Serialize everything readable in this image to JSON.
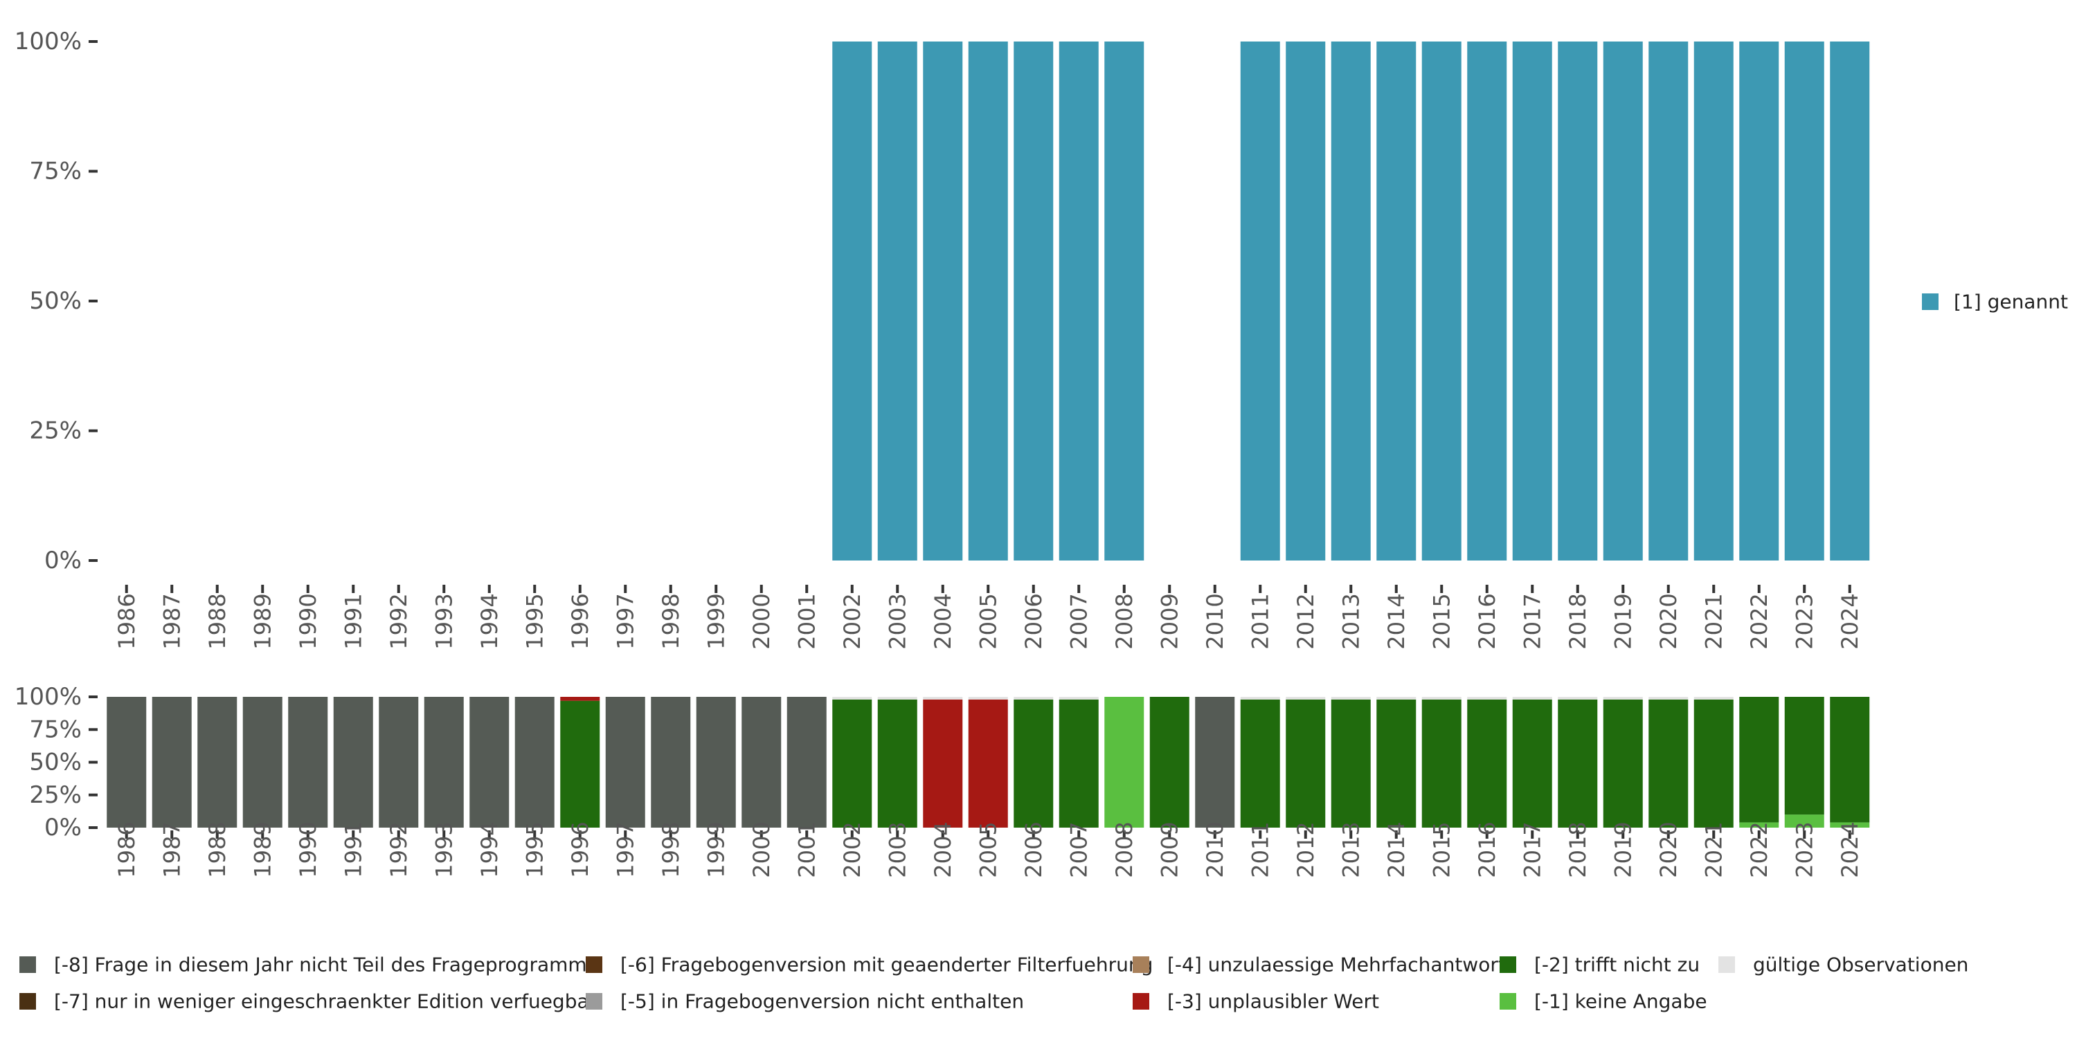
{
  "chart_data": [
    {
      "type": "bar",
      "stacked": true,
      "categories": [
        "1986",
        "1987",
        "1988",
        "1989",
        "1990",
        "1991",
        "1992",
        "1993",
        "1994",
        "1995",
        "1996",
        "1997",
        "1998",
        "1999",
        "2000",
        "2001",
        "2002",
        "2003",
        "2004",
        "2005",
        "2006",
        "2007",
        "2008",
        "2009",
        "2010",
        "2011",
        "2012",
        "2013",
        "2014",
        "2015",
        "2016",
        "2017",
        "2018",
        "2019",
        "2020",
        "2021",
        "2022",
        "2023",
        "2024"
      ],
      "ylim": [
        0,
        100
      ],
      "yticks": [
        "0%",
        "25%",
        "50%",
        "75%",
        "100%"
      ],
      "series": [
        {
          "name": "[1] genannt",
          "color": "#3d99b3",
          "values": [
            0,
            0,
            0,
            0,
            0,
            0,
            0,
            0,
            0,
            0,
            0,
            0,
            0,
            0,
            0,
            0,
            100,
            100,
            100,
            100,
            100,
            100,
            100,
            0,
            0,
            100,
            100,
            100,
            100,
            100,
            100,
            100,
            100,
            100,
            100,
            100,
            100,
            100,
            100
          ]
        }
      ],
      "legend": [
        {
          "label": "[1] genannt",
          "color": "#3d99b3"
        }
      ]
    },
    {
      "type": "bar",
      "stacked": true,
      "categories": [
        "1986",
        "1987",
        "1988",
        "1989",
        "1990",
        "1991",
        "1992",
        "1993",
        "1994",
        "1995",
        "1996",
        "1997",
        "1998",
        "1999",
        "2000",
        "2001",
        "2002",
        "2003",
        "2004",
        "2005",
        "2006",
        "2007",
        "2008",
        "2009",
        "2010",
        "2011",
        "2012",
        "2013",
        "2014",
        "2015",
        "2016",
        "2017",
        "2018",
        "2019",
        "2020",
        "2021",
        "2022",
        "2023",
        "2024"
      ],
      "ylim": [
        0,
        100
      ],
      "yticks": [
        "0%",
        "25%",
        "50%",
        "75%",
        "100%"
      ],
      "series": [
        {
          "name": "[-1] keine Angabe",
          "color": "#5abf40",
          "values": [
            0,
            0,
            0,
            0,
            0,
            0,
            0,
            0,
            0,
            0,
            0,
            0,
            0,
            0,
            0,
            0,
            0,
            0,
            0,
            0,
            0,
            0,
            100,
            0,
            0,
            0,
            0,
            0,
            0,
            0,
            0,
            0,
            0,
            0,
            0,
            0,
            4,
            10,
            4
          ]
        },
        {
          "name": "[-2] trifft nicht zu",
          "color": "#206b0d",
          "values": [
            0,
            0,
            0,
            0,
            0,
            0,
            0,
            0,
            0,
            0,
            97,
            0,
            0,
            0,
            0,
            0,
            98,
            98,
            0,
            0,
            98,
            98,
            0,
            100,
            0,
            98,
            98,
            98,
            98,
            98,
            98,
            98,
            98,
            98,
            98,
            98,
            96,
            90,
            96
          ]
        },
        {
          "name": "[-3] unplausibler Wert",
          "color": "#a61914",
          "values": [
            0,
            0,
            0,
            0,
            0,
            0,
            0,
            0,
            0,
            0,
            3,
            0,
            0,
            0,
            0,
            0,
            0,
            0,
            98,
            98,
            0,
            0,
            0,
            0,
            0,
            0,
            0,
            0,
            0,
            0,
            0,
            0,
            0,
            0,
            0,
            0,
            0,
            0,
            0
          ]
        },
        {
          "name": "[-8] Frage in diesem Jahr nicht Teil des Frageprogramms",
          "color": "#555b55",
          "values": [
            100,
            100,
            100,
            100,
            100,
            100,
            100,
            100,
            100,
            100,
            0,
            100,
            100,
            100,
            100,
            100,
            0,
            0,
            0,
            0,
            0,
            0,
            0,
            0,
            100,
            0,
            0,
            0,
            0,
            0,
            0,
            0,
            0,
            0,
            0,
            0,
            0,
            0,
            0
          ]
        },
        {
          "name": "gültige Observationen",
          "color": "#e3e3e3",
          "values": [
            0,
            0,
            0,
            0,
            0,
            0,
            0,
            0,
            0,
            0,
            0,
            0,
            0,
            0,
            0,
            0,
            2,
            2,
            2,
            2,
            2,
            2,
            0,
            0,
            0,
            2,
            2,
            2,
            2,
            2,
            2,
            2,
            2,
            2,
            2,
            2,
            0,
            0,
            0
          ]
        }
      ],
      "legend": [
        {
          "label": "[-8] Frage in diesem Jahr nicht Teil des Frageprogramms",
          "color": "#555b55"
        },
        {
          "label": "[-7] nur in weniger eingeschraenkter Edition verfuegbar",
          "color": "#4a3013"
        },
        {
          "label": "[-6] Fragebogenversion mit geaenderter Filterfuehrung",
          "color": "#5a3514"
        },
        {
          "label": "[-5] in Fragebogenversion nicht enthalten",
          "color": "#9b9b9b"
        },
        {
          "label": "[-4] unzulaessige Mehrfachantwort",
          "color": "#a8805a"
        },
        {
          "label": "[-3] unplausibler Wert",
          "color": "#a61914"
        },
        {
          "label": "[-2] trifft nicht zu",
          "color": "#206b0d"
        },
        {
          "label": "[-1] keine Angabe",
          "color": "#5abf40"
        },
        {
          "label": "gültige Observationen",
          "color": "#e3e3e3"
        }
      ]
    }
  ]
}
